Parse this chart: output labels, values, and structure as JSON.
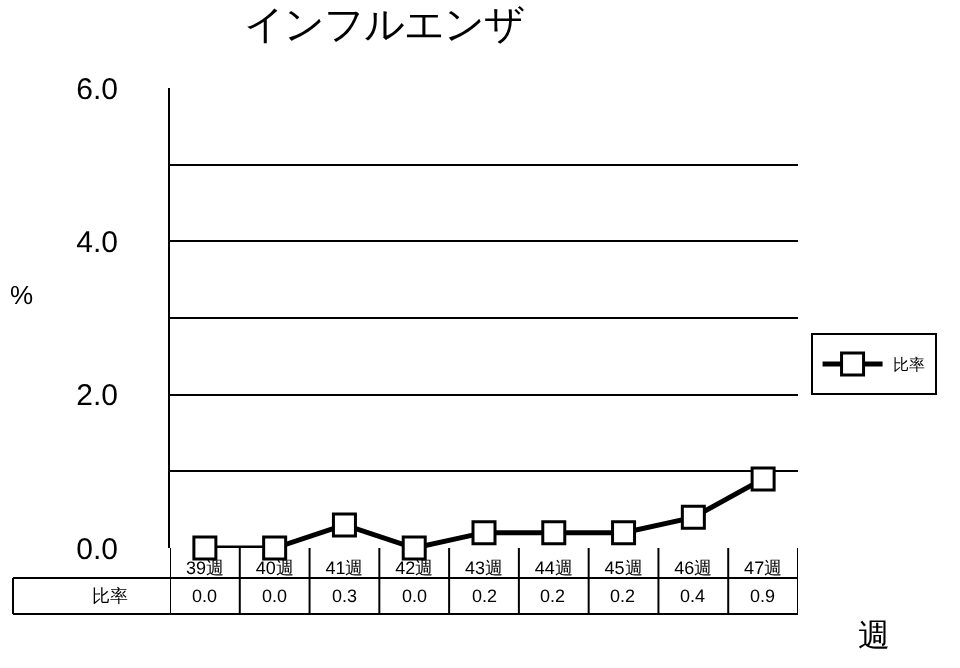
{
  "chart_data": {
    "type": "line",
    "title": "インフルエンザ",
    "xlabel": "週",
    "ylabel": "%",
    "categories": [
      "39週",
      "40週",
      "41週",
      "42週",
      "43週",
      "44週",
      "45週",
      "46週",
      "47週"
    ],
    "series": [
      {
        "name": "比率",
        "color": "#000000",
        "values": [
          0.0,
          0.0,
          0.3,
          0.0,
          0.2,
          0.2,
          0.2,
          0.4,
          0.9
        ],
        "value_labels": [
          "0.0",
          "0.0",
          "0.3",
          "0.0",
          "0.2",
          "0.2",
          "0.2",
          "0.4",
          "0.9"
        ]
      }
    ],
    "ylim": [
      0,
      6
    ],
    "yticks": [
      {
        "value": 0,
        "label": "0.0"
      },
      {
        "value": 1,
        "label": null
      },
      {
        "value": 2,
        "label": "2.0"
      },
      {
        "value": 3,
        "label": null
      },
      {
        "value": 4,
        "label": "4.0"
      },
      {
        "value": 5,
        "label": null
      },
      {
        "value": 6,
        "label": "6.0"
      }
    ],
    "grid": "y",
    "legend": "right",
    "marker": "square",
    "line_style": "solid"
  }
}
